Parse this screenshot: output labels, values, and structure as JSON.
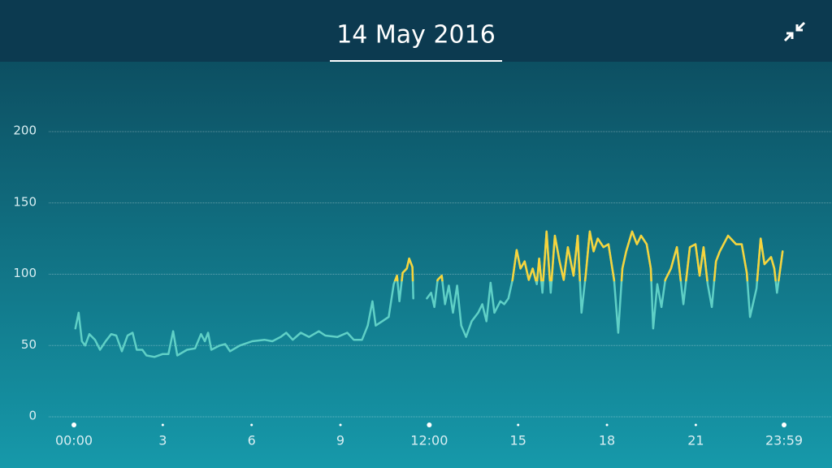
{
  "chart_data": {
    "type": "line",
    "title": "14 May 2016",
    "xlim": [
      0,
      23.98
    ],
    "xticks": [
      {
        "value": 0,
        "label": "00:00"
      },
      3,
      6,
      9,
      {
        "value": 12,
        "label": "12:00"
      },
      15,
      18,
      21,
      {
        "value": 23.98,
        "label": "23:59"
      }
    ],
    "ylim": [
      0,
      200
    ],
    "yticks": [
      0,
      50,
      100,
      150,
      200
    ],
    "grid": true,
    "color": "#5fd0c6",
    "high_color": "#f6d43c",
    "high_from": 95,
    "x": [
      0.05,
      0.16,
      0.27,
      0.38,
      0.52,
      0.71,
      0.88,
      1.07,
      1.26,
      1.43,
      1.62,
      1.81,
      1.98,
      2.12,
      2.31,
      2.45,
      2.72,
      2.99,
      3.19,
      3.35,
      3.49,
      3.82,
      4.09,
      4.29,
      4.42,
      4.53,
      4.64,
      4.92,
      5.11,
      5.27,
      5.6,
      6.02,
      6.43,
      6.7,
      6.98,
      7.17,
      7.39,
      7.66,
      7.94,
      8.27,
      8.49,
      8.9,
      9.23,
      9.45,
      9.73,
      9.92,
      10.08,
      10.19,
      10.41,
      10.63,
      10.8,
      10.91,
      10.99,
      11.1,
      11.24,
      11.32,
      11.43,
      11.46,
      11.7,
      11.92,
      12.06,
      12.17,
      12.28,
      12.42,
      12.53,
      12.66,
      12.8,
      12.94,
      13.08,
      13.24,
      13.43,
      13.65,
      13.79,
      13.93,
      14.07,
      14.2,
      14.4,
      14.53,
      14.67,
      14.81,
      14.95,
      15.08,
      15.22,
      15.36,
      15.49,
      15.63,
      15.71,
      15.82,
      15.96,
      16.1,
      16.24,
      16.4,
      16.54,
      16.68,
      16.87,
      17.01,
      17.14,
      17.28,
      17.42,
      17.55,
      17.69,
      17.88,
      18.05,
      18.24,
      18.38,
      18.52,
      18.65,
      18.85,
      19.01,
      19.15,
      19.34,
      19.48,
      19.56,
      19.7,
      19.84,
      19.97,
      20.16,
      20.36,
      20.58,
      20.8,
      20.99,
      21.13,
      21.26,
      21.4,
      21.54,
      21.68,
      21.81,
      22.09,
      22.36,
      22.55,
      22.72,
      22.83,
      23.05,
      23.19,
      23.32,
      23.54,
      23.65,
      23.74,
      23.93
    ],
    "values": [
      62,
      73,
      53,
      50,
      58,
      54,
      47,
      53,
      58,
      57,
      46,
      57,
      59,
      47,
      47,
      43,
      42,
      44,
      44,
      60,
      43,
      47,
      48,
      58,
      53,
      59,
      47,
      50,
      51,
      46,
      50,
      53,
      54,
      53,
      56,
      59,
      54,
      59,
      56,
      60,
      57,
      56,
      59,
      54,
      54,
      64,
      81,
      64,
      67,
      70,
      93,
      99,
      81,
      101,
      104,
      111,
      105,
      83,
      null,
      83,
      87,
      77,
      96,
      99,
      79,
      92,
      73,
      92,
      64,
      56,
      67,
      73,
      79,
      67,
      94,
      73,
      81,
      79,
      83,
      96,
      117,
      104,
      109,
      96,
      104,
      93,
      111,
      87,
      130,
      87,
      127,
      109,
      96,
      119,
      99,
      127,
      73,
      99,
      130,
      116,
      125,
      119,
      121,
      96,
      59,
      104,
      116,
      130,
      121,
      127,
      121,
      104,
      62,
      93,
      77,
      96,
      104,
      119,
      79,
      119,
      121,
      99,
      119,
      93,
      77,
      109,
      116,
      127,
      121,
      121,
      101,
      70,
      90,
      125,
      107,
      112,
      104,
      87,
      116
    ]
  }
}
